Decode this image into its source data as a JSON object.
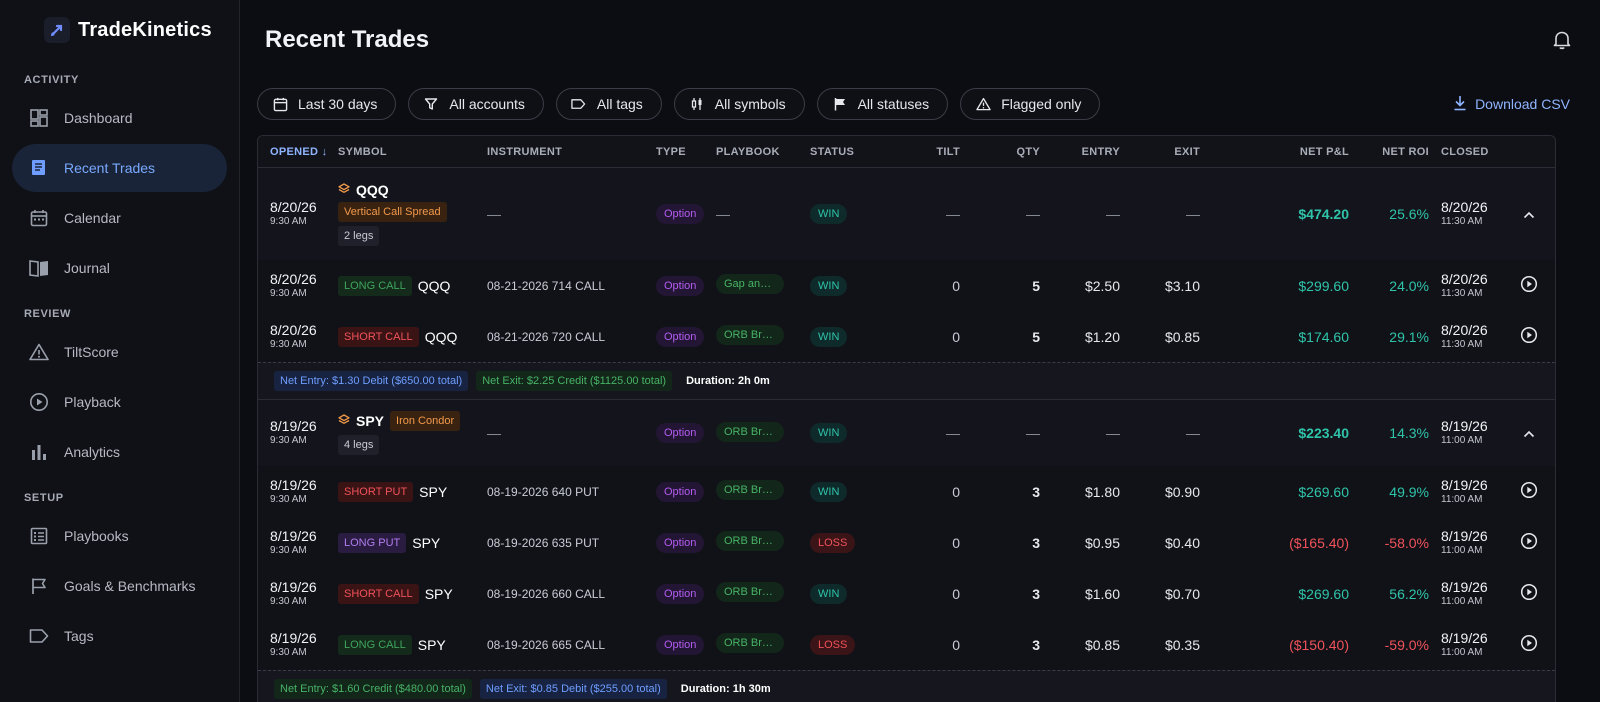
{
  "app": {
    "name": "TradeKinetics"
  },
  "sidebar": {
    "sections": [
      {
        "label": "ACTIVITY",
        "items": [
          {
            "label": "Dashboard",
            "icon": "dashboard-icon"
          },
          {
            "label": "Recent Trades",
            "icon": "trades-icon",
            "active": true
          },
          {
            "label": "Calendar",
            "icon": "calendar-icon"
          },
          {
            "label": "Journal",
            "icon": "journal-icon"
          }
        ]
      },
      {
        "label": "REVIEW",
        "items": [
          {
            "label": "TiltScore",
            "icon": "warning-icon"
          },
          {
            "label": "Playback",
            "icon": "play-circle-icon"
          },
          {
            "label": "Analytics",
            "icon": "bar-chart-icon"
          }
        ]
      },
      {
        "label": "SETUP",
        "items": [
          {
            "label": "Playbooks",
            "icon": "list-icon"
          },
          {
            "label": "Goals & Benchmarks",
            "icon": "flag-icon"
          },
          {
            "label": "Tags",
            "icon": "tag-icon"
          }
        ]
      }
    ]
  },
  "header": {
    "title": "Recent Trades"
  },
  "filters": {
    "date": "Last 30 days",
    "accounts": "All accounts",
    "tags": "All tags",
    "symbols": "All symbols",
    "statuses": "All statuses",
    "flagged": "Flagged only",
    "download": "Download CSV"
  },
  "table": {
    "columns": [
      "OPENED ↓",
      "SYMBOL",
      "INSTRUMENT",
      "TYPE",
      "PLAYBOOK",
      "STATUS",
      "TILT",
      "QTY",
      "ENTRY",
      "EXIT",
      "NET P&L",
      "NET ROI",
      "CLOSED"
    ],
    "groups": [
      {
        "parent": {
          "date": "8/20/26",
          "time": "9:30 AM",
          "symbol": "QQQ",
          "strategy": "Vertical Call Spread",
          "legs": "2 legs",
          "instrument": "—",
          "type": "Option",
          "playbook": "—",
          "status": "WIN",
          "tilt": "—",
          "qty": "—",
          "entry": "—",
          "exit": "—",
          "pnl": "$474.20",
          "roi": "25.6%",
          "closed_date": "8/20/26",
          "closed_time": "11:30 AM"
        },
        "legs": [
          {
            "date": "8/20/26",
            "time": "9:30 AM",
            "side": "LONG CALL",
            "symbol": "QQQ",
            "instrument": "08-21-2026 714 CALL",
            "type": "Option",
            "playbook": "Gap and Go",
            "status": "WIN",
            "tilt": "0",
            "qty": "5",
            "entry": "$2.50",
            "exit": "$3.10",
            "pnl": "$299.60",
            "roi": "24.0%",
            "closed_date": "8/20/26",
            "closed_time": "11:30 AM"
          },
          {
            "date": "8/20/26",
            "time": "9:30 AM",
            "side": "SHORT CALL",
            "symbol": "QQQ",
            "instrument": "08-21-2026 720 CALL",
            "type": "Option",
            "playbook": "ORB Breakout",
            "status": "WIN",
            "tilt": "0",
            "qty": "5",
            "entry": "$1.20",
            "exit": "$0.85",
            "pnl": "$174.60",
            "roi": "29.1%",
            "closed_date": "8/20/26",
            "closed_time": "11:30 AM"
          }
        ],
        "summary": {
          "entry": "Net Entry: $1.30 Debit ($650.00 total)",
          "exit": "Net Exit: $2.25 Credit ($1125.00 total)",
          "duration": "Duration: 2h 0m"
        }
      },
      {
        "parent": {
          "date": "8/19/26",
          "time": "9:30 AM",
          "symbol": "SPY",
          "strategy": "Iron Condor",
          "legs": "4 legs",
          "instrument": "—",
          "type": "Option",
          "playbook": "ORB Breakout",
          "status": "WIN",
          "tilt": "—",
          "qty": "—",
          "entry": "—",
          "exit": "—",
          "pnl": "$223.40",
          "roi": "14.3%",
          "closed_date": "8/19/26",
          "closed_time": "11:00 AM"
        },
        "legs": [
          {
            "date": "8/19/26",
            "time": "9:30 AM",
            "side": "SHORT PUT",
            "symbol": "SPY",
            "instrument": "08-19-2026 640 PUT",
            "type": "Option",
            "playbook": "ORB Breakout",
            "status": "WIN",
            "tilt": "0",
            "qty": "3",
            "entry": "$1.80",
            "exit": "$0.90",
            "pnl": "$269.60",
            "roi": "49.9%",
            "closed_date": "8/19/26",
            "closed_time": "11:00 AM"
          },
          {
            "date": "8/19/26",
            "time": "9:30 AM",
            "side": "LONG PUT",
            "symbol": "SPY",
            "instrument": "08-19-2026 635 PUT",
            "type": "Option",
            "playbook": "ORB Breakout",
            "status": "LOSS",
            "tilt": "0",
            "qty": "3",
            "entry": "$0.95",
            "exit": "$0.40",
            "pnl": "($165.40)",
            "roi": "-58.0%",
            "closed_date": "8/19/26",
            "closed_time": "11:00 AM"
          },
          {
            "date": "8/19/26",
            "time": "9:30 AM",
            "side": "SHORT CALL",
            "symbol": "SPY",
            "instrument": "08-19-2026 660 CALL",
            "type": "Option",
            "playbook": "ORB Breakout",
            "status": "WIN",
            "tilt": "0",
            "qty": "3",
            "entry": "$1.60",
            "exit": "$0.70",
            "pnl": "$269.60",
            "roi": "56.2%",
            "closed_date": "8/19/26",
            "closed_time": "11:00 AM"
          },
          {
            "date": "8/19/26",
            "time": "9:30 AM",
            "side": "LONG CALL",
            "symbol": "SPY",
            "instrument": "08-19-2026 665 CALL",
            "type": "Option",
            "playbook": "ORB Breakout",
            "status": "LOSS",
            "tilt": "0",
            "qty": "3",
            "entry": "$0.85",
            "exit": "$0.35",
            "pnl": "($150.40)",
            "roi": "-59.0%",
            "closed_date": "8/19/26",
            "closed_time": "11:00 AM"
          }
        ],
        "summary": {
          "entry": "Net Entry: $1.60 Credit ($480.00 total)",
          "exit": "Net Exit: $0.85 Debit ($255.00 total)",
          "duration": "Duration: 1h 30m"
        }
      }
    ]
  },
  "colors": {
    "accent": "#78a9ff",
    "win": "#2fc4aa",
    "loss": "#f0525a",
    "option": "#b45cf2"
  }
}
